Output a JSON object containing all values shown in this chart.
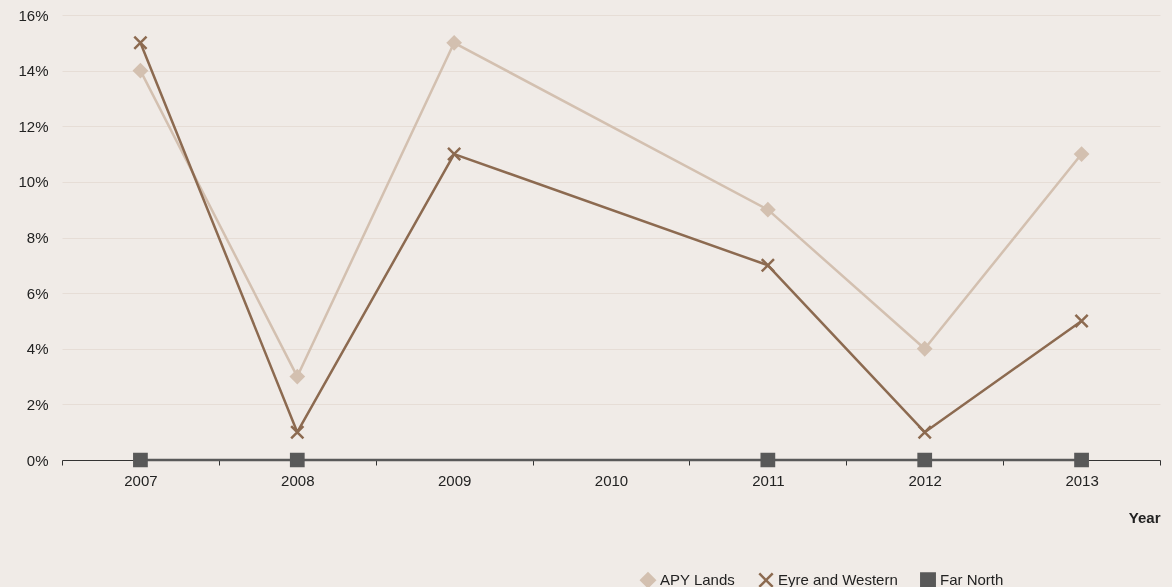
{
  "chart_data": {
    "type": "line",
    "xlabel": "Year",
    "categories": [
      "2007",
      "2008",
      "2009",
      "2010",
      "2011",
      "2012",
      "2013"
    ],
    "series": [
      {
        "name": "APY Lands",
        "color": "#d3c0b0",
        "marker": "diamond",
        "values": [
          14,
          3,
          15,
          null,
          9,
          4,
          11
        ]
      },
      {
        "name": "Eyre and Western",
        "color": "#8c6a50",
        "marker": "cross",
        "values": [
          15,
          1,
          11,
          null,
          7,
          1,
          5
        ]
      },
      {
        "name": "Far North",
        "color": "#595959",
        "marker": "square",
        "values": [
          0,
          0,
          null,
          null,
          0,
          0,
          0
        ]
      }
    ],
    "ylim": [
      0,
      16
    ],
    "yticks": [
      {
        "value": 0,
        "label": "0%"
      },
      {
        "value": 2,
        "label": "2%"
      },
      {
        "value": 4,
        "label": "4%"
      },
      {
        "value": 6,
        "label": "6%"
      },
      {
        "value": 8,
        "label": "8%"
      },
      {
        "value": 10,
        "label": "10%"
      },
      {
        "value": 12,
        "label": "12%"
      },
      {
        "value": 14,
        "label": "14%"
      },
      {
        "value": 16,
        "label": "16%"
      }
    ],
    "grid": "y",
    "legend": "bottom right"
  }
}
